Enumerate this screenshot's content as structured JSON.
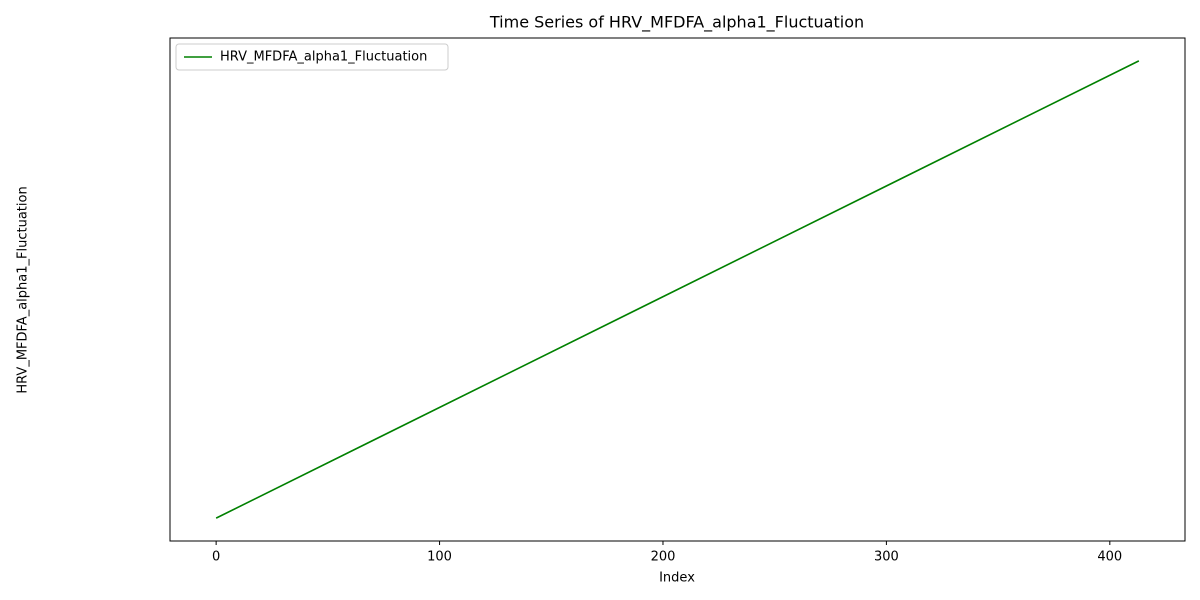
{
  "chart_data": {
    "type": "line",
    "title": "Time Series of HRV_MFDFA_alpha1_Fluctuation",
    "x_label": "Index",
    "y_label": "HRV_MFDFA_alpha1_Fluctuation",
    "x": [
      0,
      413
    ],
    "series": [
      {
        "name": "HRV_MFDFA_alpha1_Fluctuation",
        "color": "#008000",
        "values": [
          0,
          413
        ]
      }
    ],
    "xlim": [
      -20.65,
      433.65
    ],
    "xticks": [
      0,
      100,
      200,
      300,
      400
    ],
    "ylim": [
      -20.65,
      433.65
    ],
    "legend": "upper left"
  }
}
